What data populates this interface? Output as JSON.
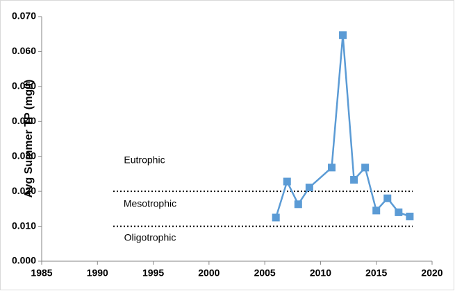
{
  "chart_data": {
    "type": "line",
    "y_label": "Avg Summer TP (mg/l)",
    "x": [
      2006,
      2007,
      2008,
      2009,
      2011,
      2012,
      2013,
      2014,
      2015,
      2016,
      2017,
      2018
    ],
    "series": [
      {
        "name": "Avg Summer TP",
        "color": "#5b9bd5",
        "values": [
          0.0125,
          0.0228,
          0.0163,
          0.0211,
          0.0268,
          0.0647,
          0.0233,
          0.0268,
          0.0145,
          0.018,
          0.014,
          0.0128
        ]
      }
    ],
    "xlim": [
      1985,
      2020
    ],
    "xticks": [
      1985,
      1990,
      1995,
      2000,
      2005,
      2010,
      2015,
      2020
    ],
    "ylim": [
      0,
      0.07
    ],
    "yticks": [
      {
        "value": 0,
        "label": "0.000"
      },
      {
        "value": 0.01,
        "label": "0.010"
      },
      {
        "value": 0.02,
        "label": "0.020"
      },
      {
        "value": 0.03,
        "label": "0.030"
      },
      {
        "value": 0.04,
        "label": "0.040"
      },
      {
        "value": 0.05,
        "label": "0.050"
      },
      {
        "value": 0.06,
        "label": "0.060"
      },
      {
        "value": 0.07,
        "label": "0.070"
      }
    ],
    "reference_lines": [
      0.02,
      0.01
    ],
    "annotations": [
      "Eutrophic",
      "Mesotrophic",
      "Oligotrophic"
    ],
    "grid": false
  }
}
